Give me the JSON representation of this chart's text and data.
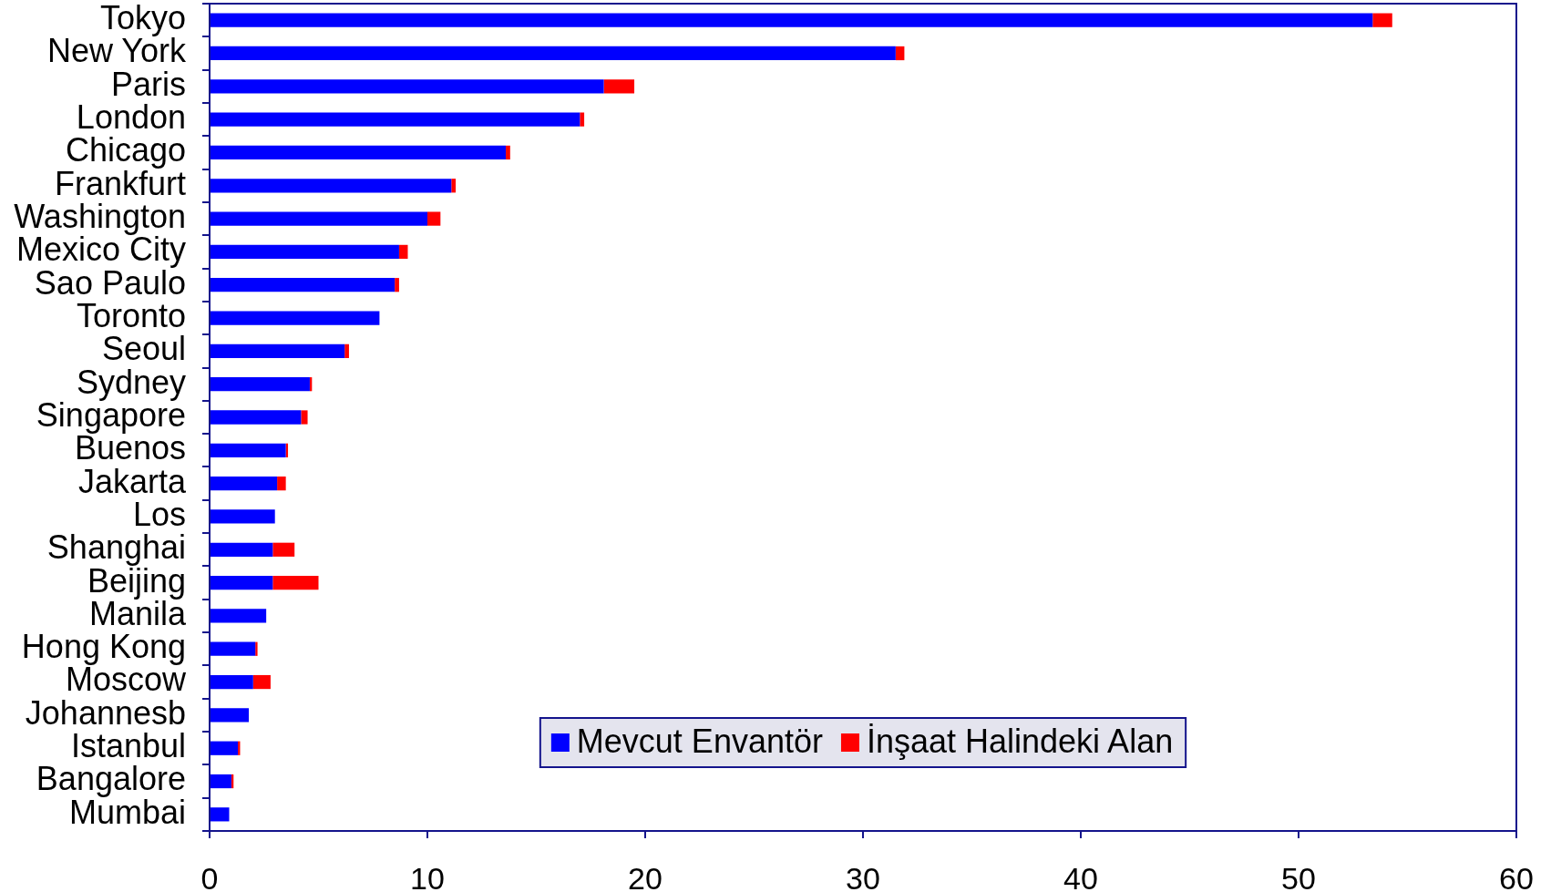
{
  "chart_data": {
    "type": "bar",
    "orientation": "horizontal",
    "stacked": true,
    "categories": [
      "Tokyo",
      "New York",
      "Paris",
      "London",
      "Chicago",
      "Frankfurt",
      "Washington",
      "Mexico City",
      "Sao Paulo",
      "Toronto",
      "Seoul",
      "Sydney",
      "Singapore",
      "Buenos",
      "Jakarta",
      "Los",
      "Shanghai",
      "Beijing",
      "Manila",
      "Hong Kong",
      "Moscow",
      "Johannesb",
      "Istanbul",
      "Bangalore",
      "Mumbai"
    ],
    "series": [
      {
        "name": "Mevcut Envantör",
        "color": "#0000ff",
        "values": [
          53.4,
          31.5,
          18.1,
          17.0,
          13.6,
          11.1,
          10.0,
          8.7,
          8.5,
          7.8,
          6.2,
          4.6,
          4.2,
          3.5,
          3.1,
          3.0,
          2.9,
          2.9,
          2.6,
          2.1,
          2.0,
          1.8,
          1.3,
          1.0,
          0.9
        ]
      },
      {
        "name": "İnşaat Halindeki Alan",
        "color": "#ff0000",
        "values": [
          0.9,
          0.4,
          1.4,
          0.2,
          0.2,
          0.2,
          0.6,
          0.4,
          0.2,
          0,
          0.2,
          0.1,
          0.3,
          0.1,
          0.4,
          0,
          1.0,
          2.1,
          0,
          0.1,
          0.8,
          0,
          0.1,
          0.1,
          0
        ]
      }
    ],
    "xlim": [
      0,
      60
    ],
    "xticks": [
      0,
      10,
      20,
      30,
      40,
      50,
      60
    ],
    "grid": false,
    "legend": "bottom"
  }
}
